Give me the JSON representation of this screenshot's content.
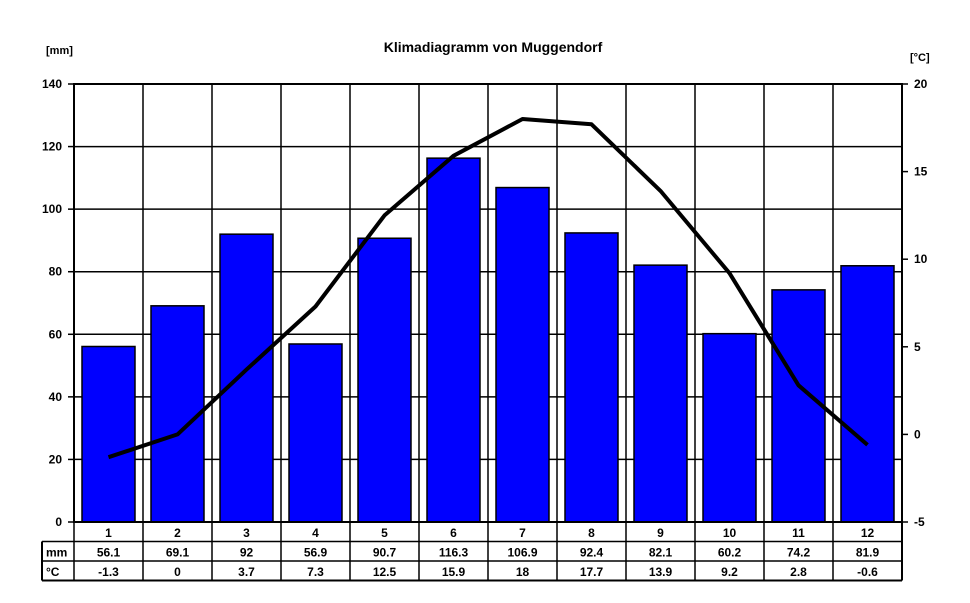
{
  "chart_data": {
    "type": "bar",
    "title": "Klimadiagramm von Muggendorf",
    "y_left_unit": "[mm]",
    "y_right_unit": "[°C]",
    "categories": [
      "1",
      "2",
      "3",
      "4",
      "5",
      "6",
      "7",
      "8",
      "9",
      "10",
      "11",
      "12"
    ],
    "series": [
      {
        "name": "mm",
        "type": "bar",
        "axis": "left",
        "color": "#0000ff",
        "values": [
          56.1,
          69.1,
          92,
          56.9,
          90.7,
          116.3,
          106.9,
          92.4,
          82.1,
          60.2,
          74.2,
          81.9
        ]
      },
      {
        "name": "°C",
        "type": "line",
        "axis": "right",
        "color": "#000000",
        "values": [
          -1.3,
          0,
          3.7,
          7.3,
          12.5,
          15.9,
          18,
          17.7,
          13.9,
          9.2,
          2.8,
          -0.6
        ]
      }
    ],
    "y_left": {
      "min": 0,
      "max": 140,
      "ticks": [
        "0",
        "20",
        "40",
        "60",
        "80",
        "100",
        "120",
        "140"
      ]
    },
    "y_right": {
      "min": -5,
      "max": 20,
      "ticks": [
        "-5",
        "0",
        "5",
        "10",
        "15",
        "20"
      ]
    },
    "table": {
      "row_labels": [
        "mm",
        "°C"
      ],
      "mm": [
        "56.1",
        "69.1",
        "92",
        "56.9",
        "90.7",
        "116.3",
        "106.9",
        "92.4",
        "82.1",
        "60.2",
        "74.2",
        "81.9"
      ],
      "temp": [
        "-1.3",
        "0",
        "3.7",
        "7.3",
        "12.5",
        "15.9",
        "18",
        "17.7",
        "13.9",
        "9.2",
        "2.8",
        "-0.6"
      ]
    },
    "grid": true
  }
}
